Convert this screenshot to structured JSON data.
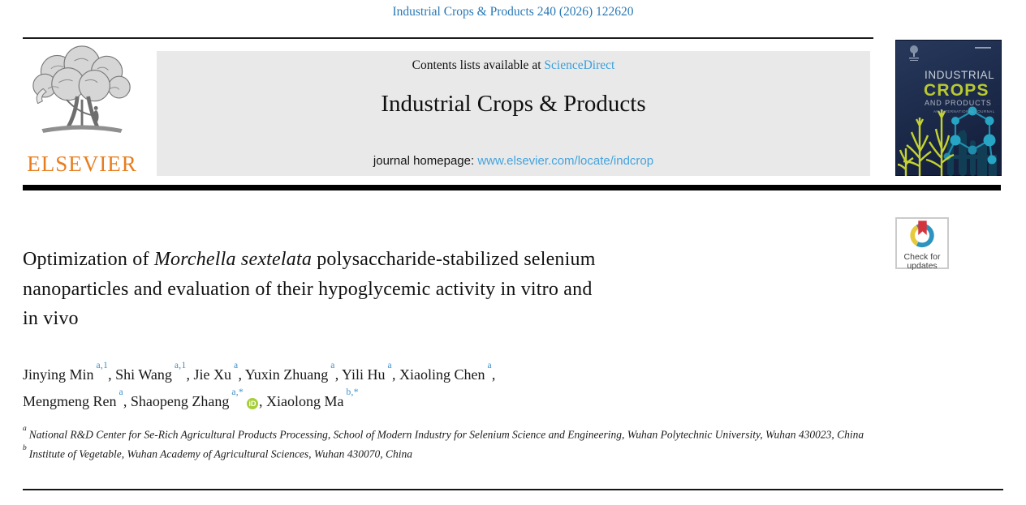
{
  "citation": "Industrial Crops & Products 240 (2026) 122620",
  "masthead": {
    "contents_prefix": "Contents lists available at ",
    "contents_link": "ScienceDirect",
    "journal_title": "Industrial Crops & Products",
    "homepage_prefix": "journal homepage: ",
    "homepage_link": "www.elsevier.com/locate/indcrop",
    "publisher_name": "ELSEVIER",
    "cover": {
      "line1": "INDUSTRIAL",
      "line2": "CROPS",
      "line3": "AND PRODUCTS",
      "subtitle": "AN INTERNATIONAL JOURNAL"
    }
  },
  "badge": {
    "line1": "Check for",
    "line2": "updates"
  },
  "article": {
    "title_lines": [
      [
        {
          "t": "Optimization of ",
          "i": false
        },
        {
          "t": "Morchella sextelata",
          "i": true
        },
        {
          "t": " polysaccharide-stabilized selenium",
          "i": false
        }
      ],
      [
        {
          "t": "nanoparticles and evaluation of their hypoglycemic activity in vitro and",
          "i": false
        }
      ],
      [
        {
          "t": "in vivo",
          "i": false
        }
      ]
    ],
    "orcid_label": "iD",
    "author_lines": [
      [
        {
          "name": "Jinying Min",
          "sup": "a,1"
        },
        {
          "name": "Shi Wang",
          "sup": "a,1"
        },
        {
          "name": "Jie Xu",
          "sup": "a"
        },
        {
          "name": "Yuxin Zhuang",
          "sup": "a"
        },
        {
          "name": "Yili Hu",
          "sup": "a"
        },
        {
          "name": "Xiaoling Chen",
          "sup": "a"
        }
      ],
      [
        {
          "name": "Mengmeng Ren",
          "sup": "a"
        },
        {
          "name": "Shaopeng Zhang",
          "sup": "a,*",
          "orcid": true
        },
        {
          "name": "Xiaolong Ma",
          "sup": "b,*"
        }
      ]
    ],
    "affiliations": [
      {
        "sup": "a",
        "text": "National R&D Center for Se-Rich Agricultural Products Processing, School of Modern Industry for Selenium Science and Engineering, Wuhan Polytechnic University, Wuhan 430023, China"
      },
      {
        "sup": "b",
        "text": "Institute of Vegetable, Wuhan Academy of Agricultural Sciences, Wuhan 430070, China"
      }
    ]
  },
  "colors": {
    "citation_link": "#2878b5",
    "sciencedirect_link": "#3ba0da",
    "homepage_link": "#45a3dd",
    "elsevier_orange": "#e87d1e",
    "superscript_blue": "#3d8fc9",
    "orcid_green": "#a6ce39",
    "masthead_bg": "#e9e9e9",
    "cover_navy": "#1d2d52",
    "cover_green": "#b9c930",
    "cover_teal": "#26a6c4",
    "crossmark_red": "#d4353d",
    "crossmark_blue": "#2d93bf",
    "crossmark_yellow": "#e7c93c"
  }
}
